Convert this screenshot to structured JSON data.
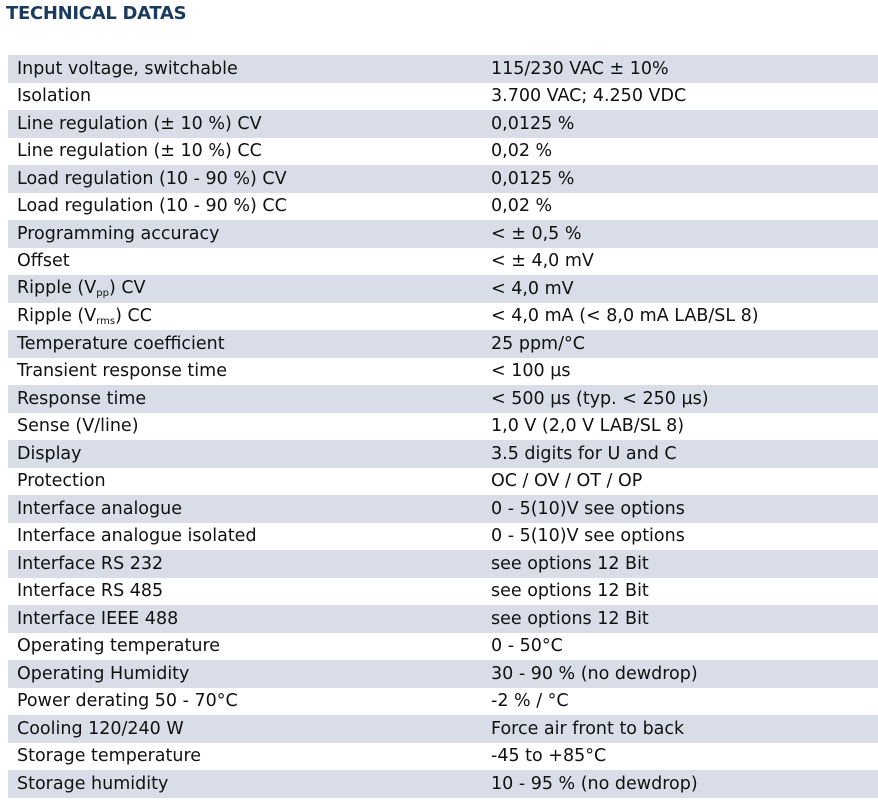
{
  "title": "TECHNICAL DATAS",
  "rows": [
    {
      "label": "Input voltage, switchable",
      "value": "115/230 VAC ± 10%"
    },
    {
      "label": "Isolation",
      "value": "3.700 VAC; 4.250 VDC"
    },
    {
      "label": "Line regulation (± 10 %) CV",
      "value": "0,0125 %"
    },
    {
      "label": "Line regulation (± 10 %) CC",
      "value": "0,02 %"
    },
    {
      "label": "Load regulation (10 - 90 %) CV",
      "value": "0,0125 %"
    },
    {
      "label": "Load regulation (10 - 90 %) CC",
      "value": "0,02 %"
    },
    {
      "label": "Programming accuracy",
      "value": "< ± 0,5 %"
    },
    {
      "label": "Offset",
      "value": "< ± 4,0 mV"
    },
    {
      "label": "Ripple (V",
      "sub": "pp",
      "label_post": ") CV",
      "value": "< 4,0 mV"
    },
    {
      "label": "Ripple (V",
      "sub": "rms",
      "label_post": ") CC",
      "value": "< 4,0 mA (< 8,0 mA LAB/SL 8)"
    },
    {
      "label": "Temperature coefficient",
      "value": "25 ppm/°C"
    },
    {
      "label": "Transient response time",
      "value": "< 100 µs"
    },
    {
      "label": "Response time",
      "value": "< 500 µs (typ. < 250 µs)"
    },
    {
      "label": "Sense (V/line)",
      "value": "1,0 V (2,0 V LAB/SL 8)"
    },
    {
      "label": "Display",
      "value": "3.5 digits for U and C"
    },
    {
      "label": "Protection",
      "value": "OC / OV / OT / OP"
    },
    {
      "label": "Interface analogue",
      "value": "0 - 5(10)V see options"
    },
    {
      "label": "Interface analogue isolated",
      "value": "0 - 5(10)V see options"
    },
    {
      "label": "Interface RS 232",
      "value": "see options 12 Bit"
    },
    {
      "label": "Interface RS 485",
      "value": "see options 12 Bit"
    },
    {
      "label": "Interface IEEE 488",
      "value": "see options 12 Bit"
    },
    {
      "label": "Operating temperature",
      "value": "0 - 50°C"
    },
    {
      "label": "Operating Humidity",
      "value": "30 - 90 % (no dewdrop)"
    },
    {
      "label": "Power derating 50 - 70°C",
      "value": "-2 % / °C"
    },
    {
      "label": "Cooling 120/240 W",
      "value": "Force air front to back"
    },
    {
      "label": "Storage temperature",
      "value": "-45 to +85°C"
    },
    {
      "label": "Storage humidity",
      "value": "10 - 95 % (no dewdrop)"
    }
  ]
}
